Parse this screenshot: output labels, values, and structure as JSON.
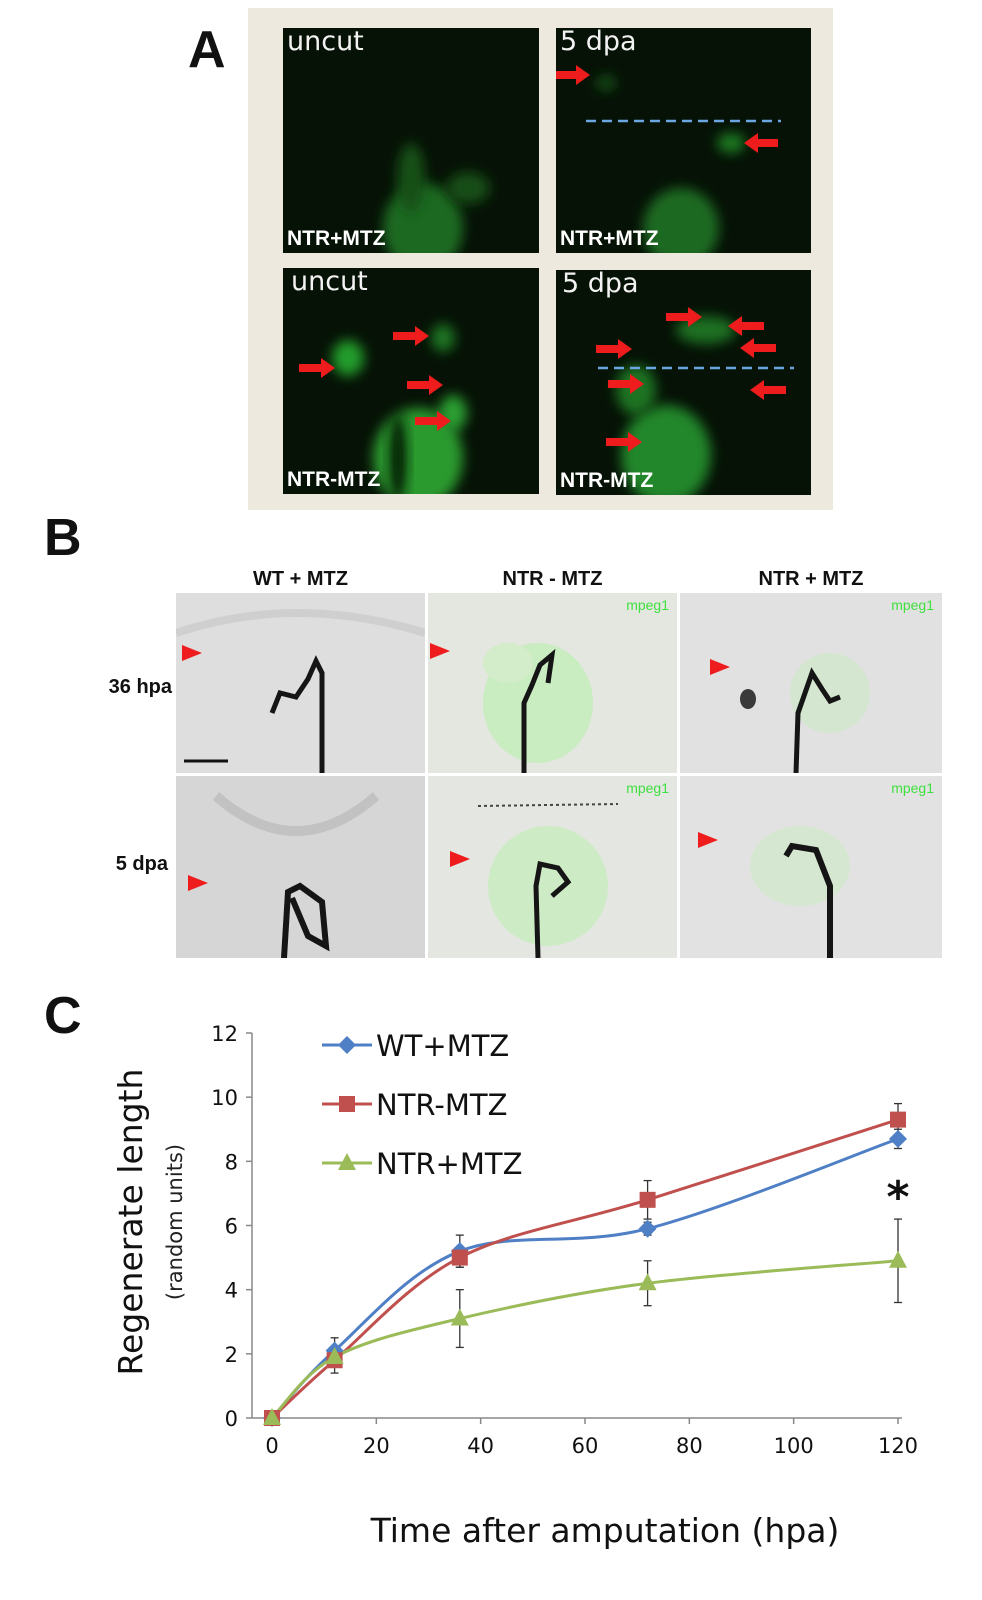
{
  "panel_A": {
    "letter": "A",
    "images": [
      {
        "top": "uncut",
        "bottom": "NTR+MTZ"
      },
      {
        "top": "5 dpa",
        "bottom": "NTR+MTZ"
      },
      {
        "top": "uncut",
        "bottom": "NTR-MTZ"
      },
      {
        "top": "5 dpa",
        "bottom": "NTR-MTZ"
      }
    ]
  },
  "panel_B": {
    "letter": "B",
    "columns": [
      "WT + MTZ",
      "NTR - MTZ",
      "NTR + MTZ"
    ],
    "rows": [
      "36 hpa",
      "5 dpa"
    ],
    "channel_label": "mpeg1"
  },
  "panel_C": {
    "letter": "C"
  },
  "colors": {
    "wt_mtz": "#4f7fc5",
    "ntr_minus_mtz": "#c0504d",
    "ntr_plus_mtz": "#9bbb59",
    "arrow": "#ee1c1c",
    "cut_line": "#6aa6e0"
  },
  "chart_data": {
    "type": "line",
    "xlabel": "Time after amputation (hpa)",
    "ylabel": "Regenerate length",
    "ylabel_sub": "(random units)",
    "xlim": [
      0,
      120
    ],
    "ylim": [
      0,
      12
    ],
    "xticks": [
      0,
      20,
      40,
      60,
      80,
      100,
      120
    ],
    "yticks": [
      0,
      2,
      4,
      6,
      8,
      10,
      12
    ],
    "grid": false,
    "legend_position": "top-left",
    "x": [
      0,
      12,
      36,
      72,
      120
    ],
    "series": [
      {
        "name": "WT+MTZ",
        "marker": "diamond",
        "color": "#4f7fc5",
        "values": [
          0,
          2.1,
          5.2,
          5.9,
          8.7
        ],
        "errors": [
          0,
          0.4,
          0.5,
          0.2,
          0.3
        ]
      },
      {
        "name": "NTR-MTZ",
        "marker": "square",
        "color": "#c0504d",
        "values": [
          0,
          1.8,
          5.0,
          6.8,
          9.3
        ],
        "errors": [
          0,
          0.4,
          0.3,
          0.6,
          0.5
        ]
      },
      {
        "name": "NTR+MTZ",
        "marker": "triangle",
        "color": "#9bbb59",
        "values": [
          0,
          1.9,
          3.1,
          4.2,
          4.9
        ],
        "errors": [
          0,
          0.3,
          0.9,
          0.7,
          1.3
        ]
      }
    ],
    "annotation": "*",
    "annotation_x": 120
  }
}
